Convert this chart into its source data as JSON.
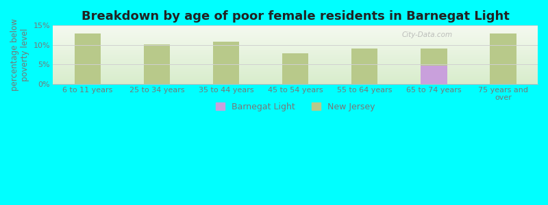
{
  "title": "Breakdown by age of poor female residents in Barnegat Light",
  "ylabel": "percentage below\npoverty level",
  "background_color": "#00FFFF",
  "plot_bg_top": "#f5f9f0",
  "plot_bg_bottom": "#d8edcc",
  "categories": [
    "6 to 11 years",
    "25 to 34 years",
    "35 to 44 years",
    "45 to 54 years",
    "55 to 64 years",
    "65 to 74 years",
    "75 years and\nover"
  ],
  "barnegat_values": [
    null,
    null,
    null,
    null,
    null,
    4.7,
    null
  ],
  "nj_values": [
    12.9,
    10.1,
    10.9,
    7.9,
    9.0,
    9.1,
    13.0
  ],
  "barnegat_color": "#c9a0dc",
  "nj_color": "#b8c98a",
  "ylim": [
    0,
    15
  ],
  "yticks": [
    0,
    5,
    10,
    15
  ],
  "ytick_labels": [
    "0%",
    "5%",
    "10%",
    "15%"
  ],
  "grid_color": "#d0d0d0",
  "bar_width": 0.38,
  "title_fontsize": 13,
  "axis_fontsize": 8.5,
  "tick_fontsize": 8,
  "legend_fontsize": 9,
  "watermark_text": "City-Data.com",
  "label_color": "#777777"
}
